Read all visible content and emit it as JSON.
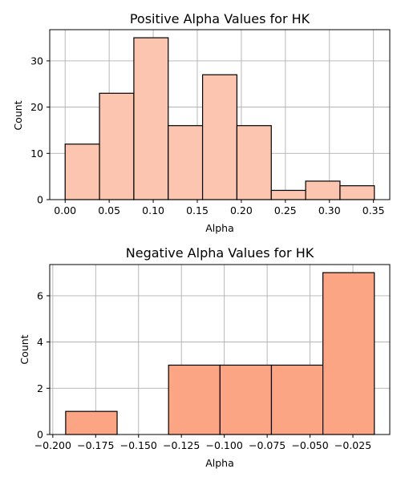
{
  "chart_data": [
    {
      "type": "bar",
      "title": "Positive Alpha Values for HK",
      "xlabel": "Alpha",
      "ylabel": "Count",
      "bin_edges": [
        0.0,
        0.039,
        0.078,
        0.117,
        0.156,
        0.195,
        0.234,
        0.273,
        0.312,
        0.351
      ],
      "values": [
        12,
        23,
        35,
        16,
        27,
        16,
        2,
        4,
        3
      ],
      "xlim": [
        -0.0175,
        0.3685
      ],
      "ylim": [
        0,
        36.75
      ],
      "xticks": [
        0.0,
        0.05,
        0.1,
        0.15,
        0.2,
        0.25,
        0.3,
        0.35
      ],
      "xtick_labels": [
        "0.00",
        "0.05",
        "0.10",
        "0.15",
        "0.20",
        "0.25",
        "0.30",
        "0.35"
      ],
      "yticks": [
        0,
        10,
        20,
        30
      ],
      "ytick_labels": [
        "0",
        "10",
        "20",
        "30"
      ],
      "grid": true,
      "bar_color": "#fcc5b0"
    },
    {
      "type": "bar",
      "title": "Negative Alpha Values for HK",
      "xlabel": "Alpha",
      "ylabel": "Count",
      "bin_edges": [
        -0.1925,
        -0.1625,
        -0.1325,
        -0.1025,
        -0.0725,
        -0.0425,
        -0.0125
      ],
      "values": [
        1,
        0,
        3,
        3,
        3,
        7
      ],
      "xlim": [
        -0.2018,
        -0.0035
      ],
      "ylim": [
        0,
        7.35
      ],
      "xticks": [
        -0.2,
        -0.175,
        -0.15,
        -0.125,
        -0.1,
        -0.075,
        -0.05,
        -0.025
      ],
      "xtick_labels": [
        "−0.200",
        "−0.175",
        "−0.150",
        "−0.125",
        "−0.100",
        "−0.075",
        "−0.050",
        "−0.025"
      ],
      "yticks": [
        0,
        2,
        4,
        6
      ],
      "ytick_labels": [
        "0",
        "2",
        "4",
        "6"
      ],
      "grid": true,
      "bar_color": "#fca584"
    }
  ]
}
